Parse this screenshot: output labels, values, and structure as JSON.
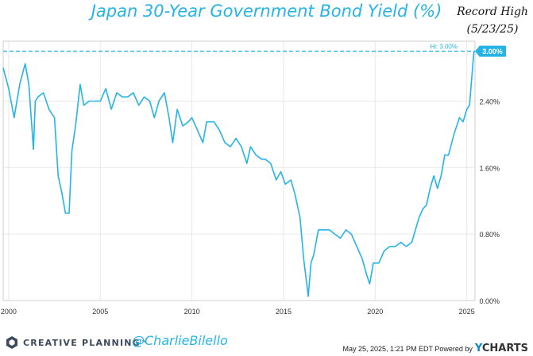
{
  "title": "Japan 30-Year Government Bond Yield (%)",
  "annotation": {
    "line1": "Record High",
    "line2": "(5/23/25)"
  },
  "footer": {
    "brand": "CREATIVE PLANNING",
    "trademark": "™",
    "handle": "@CharlieBilello",
    "timestamp": "May 25, 2025, 1:21 PM EDT Powered by",
    "powered_by": "YCHARTS"
  },
  "chart_data": {
    "type": "line",
    "series": [
      {
        "x": [
          1999.7,
          2000.0,
          2000.3,
          2000.6,
          2000.9,
          2001.1,
          2001.35,
          2001.45,
          2001.6,
          2001.9,
          2002.2,
          2002.5,
          2002.7,
          2002.9,
          2003.1,
          2003.3,
          2003.45,
          2003.65,
          2003.9,
          2004.1,
          2004.4,
          2004.7,
          2005.0,
          2005.3,
          2005.6,
          2005.9,
          2006.2,
          2006.5,
          2006.8,
          2007.1,
          2007.4,
          2007.7,
          2007.95,
          2008.2,
          2008.5,
          2008.75,
          2008.95,
          2009.2,
          2009.5,
          2009.8,
          2010.0,
          2010.3,
          2010.6,
          2010.8,
          2011.2,
          2011.5,
          2011.8,
          2012.1,
          2012.4,
          2012.7,
          2013.0,
          2013.2,
          2013.5,
          2013.8,
          2014.0,
          2014.3,
          2014.6,
          2014.85,
          2015.1,
          2015.4,
          2015.6,
          2015.9,
          2016.1,
          2016.35,
          2016.5,
          2016.65,
          2016.9,
          2017.2,
          2017.5,
          2017.8,
          2018.1,
          2018.4,
          2018.7,
          2019.0,
          2019.3,
          2019.55,
          2019.7,
          2019.9,
          2020.2,
          2020.5,
          2020.8,
          2021.1,
          2021.4,
          2021.7,
          2022.0,
          2022.2,
          2022.4,
          2022.6,
          2022.8,
          2023.0,
          2023.2,
          2023.4,
          2023.6,
          2023.8,
          2024.0,
          2024.3,
          2024.6,
          2024.8,
          2025.0,
          2025.15,
          2025.3,
          2025.39
        ],
        "y": [
          2.8,
          2.55,
          2.2,
          2.6,
          2.85,
          2.6,
          1.82,
          2.4,
          2.45,
          2.5,
          2.3,
          2.2,
          1.5,
          1.3,
          1.05,
          1.05,
          1.8,
          2.1,
          2.6,
          2.35,
          2.4,
          2.4,
          2.4,
          2.55,
          2.3,
          2.5,
          2.45,
          2.45,
          2.5,
          2.35,
          2.45,
          2.4,
          2.2,
          2.4,
          2.5,
          2.2,
          1.9,
          2.3,
          2.1,
          2.15,
          2.2,
          2.05,
          1.9,
          2.15,
          2.15,
          2.05,
          1.9,
          1.85,
          1.95,
          1.85,
          1.65,
          1.85,
          1.75,
          1.7,
          1.7,
          1.65,
          1.45,
          1.55,
          1.4,
          1.45,
          1.3,
          1.0,
          0.5,
          0.05,
          0.45,
          0.55,
          0.85,
          0.85,
          0.85,
          0.8,
          0.75,
          0.85,
          0.8,
          0.65,
          0.5,
          0.3,
          0.2,
          0.45,
          0.45,
          0.6,
          0.65,
          0.65,
          0.7,
          0.65,
          0.7,
          0.85,
          1.0,
          1.1,
          1.15,
          1.35,
          1.5,
          1.35,
          1.5,
          1.75,
          1.75,
          2.0,
          2.2,
          2.15,
          2.3,
          2.35,
          2.75,
          3.0
        ]
      }
    ],
    "xlim": [
      1999.7,
      2025.45
    ],
    "ylim": [
      0.0,
      3.12
    ],
    "xticks": [
      {
        "v": 2000,
        "label": "2000"
      },
      {
        "v": 2005,
        "label": "2005"
      },
      {
        "v": 2010,
        "label": "2010"
      },
      {
        "v": 2015,
        "label": "2015"
      },
      {
        "v": 2020,
        "label": "2020"
      },
      {
        "v": 2025,
        "label": "2025"
      }
    ],
    "yticks": [
      {
        "v": 0.0,
        "label": "0.00%"
      },
      {
        "v": 0.8,
        "label": "0.80%"
      },
      {
        "v": 1.6,
        "label": "1.60%"
      },
      {
        "v": 2.4,
        "label": "2.40%"
      }
    ],
    "reference_line": {
      "value": 3.0,
      "label": "Hi: 3.00%"
    },
    "current_value": {
      "value": 3.0,
      "label": "3.00%"
    },
    "grid": true,
    "line_color": "#26b4e6",
    "grid_color": "#e8e8e8"
  }
}
